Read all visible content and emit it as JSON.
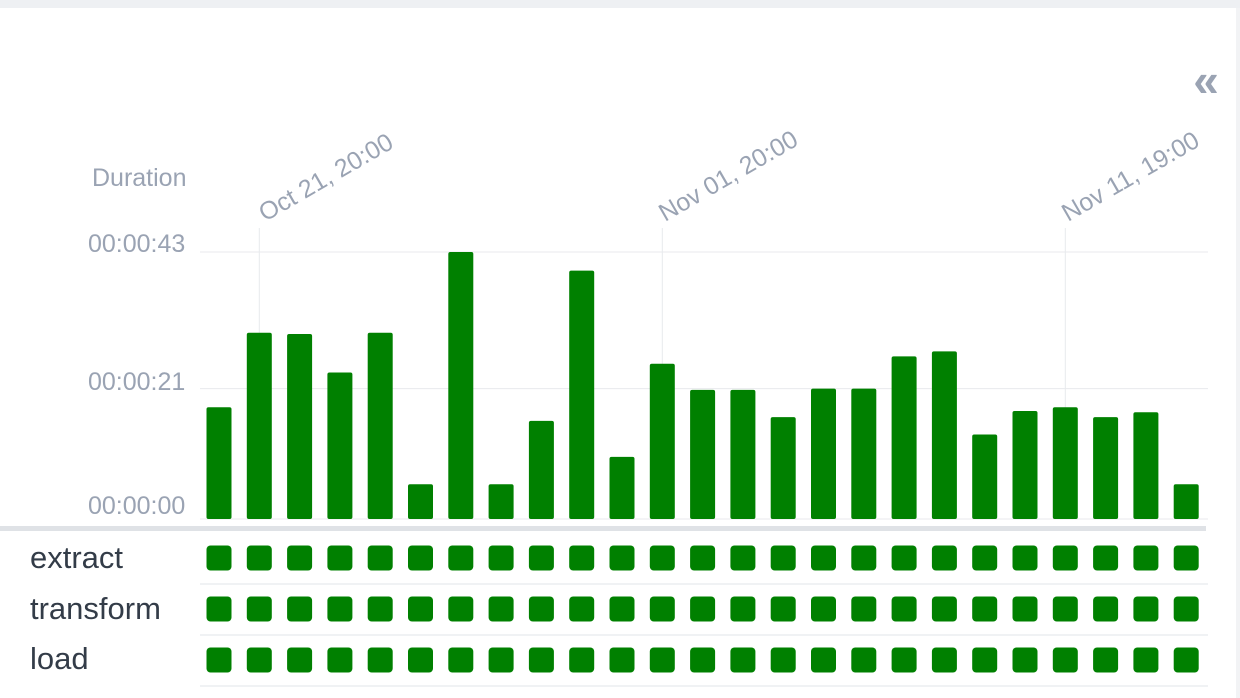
{
  "panel": {
    "collapse_icon": "chevron-double-left-icon",
    "collapse_glyph": "«"
  },
  "chart_data": {
    "type": "bar",
    "ylabel": "Duration",
    "y_unit": "seconds",
    "yticks": [
      {
        "value": 0,
        "label": "00:00:00"
      },
      {
        "value": 21,
        "label": "00:00:21"
      },
      {
        "value": 43,
        "label": "00:00:43"
      }
    ],
    "xticks": [
      {
        "run_index": 1,
        "label": "Oct 21, 20:00"
      },
      {
        "run_index": 11,
        "label": "Nov 01, 20:00"
      },
      {
        "run_index": 21,
        "label": "Nov 11, 19:00"
      }
    ],
    "ylim": [
      0,
      43
    ],
    "grid": true,
    "bar_color": "#008000",
    "values": [
      18,
      30,
      29.8,
      23.6,
      30,
      5.6,
      43,
      5.6,
      15.8,
      40,
      10,
      25,
      20.8,
      20.8,
      16.4,
      21,
      21,
      26.2,
      27,
      13.6,
      17.4,
      18,
      16.4,
      17.2,
      5.6
    ]
  },
  "tasks": {
    "status_color": "#008000",
    "status": "success",
    "run_count": 25,
    "rows": [
      {
        "name": "extract"
      },
      {
        "name": "transform"
      },
      {
        "name": "load"
      }
    ]
  }
}
